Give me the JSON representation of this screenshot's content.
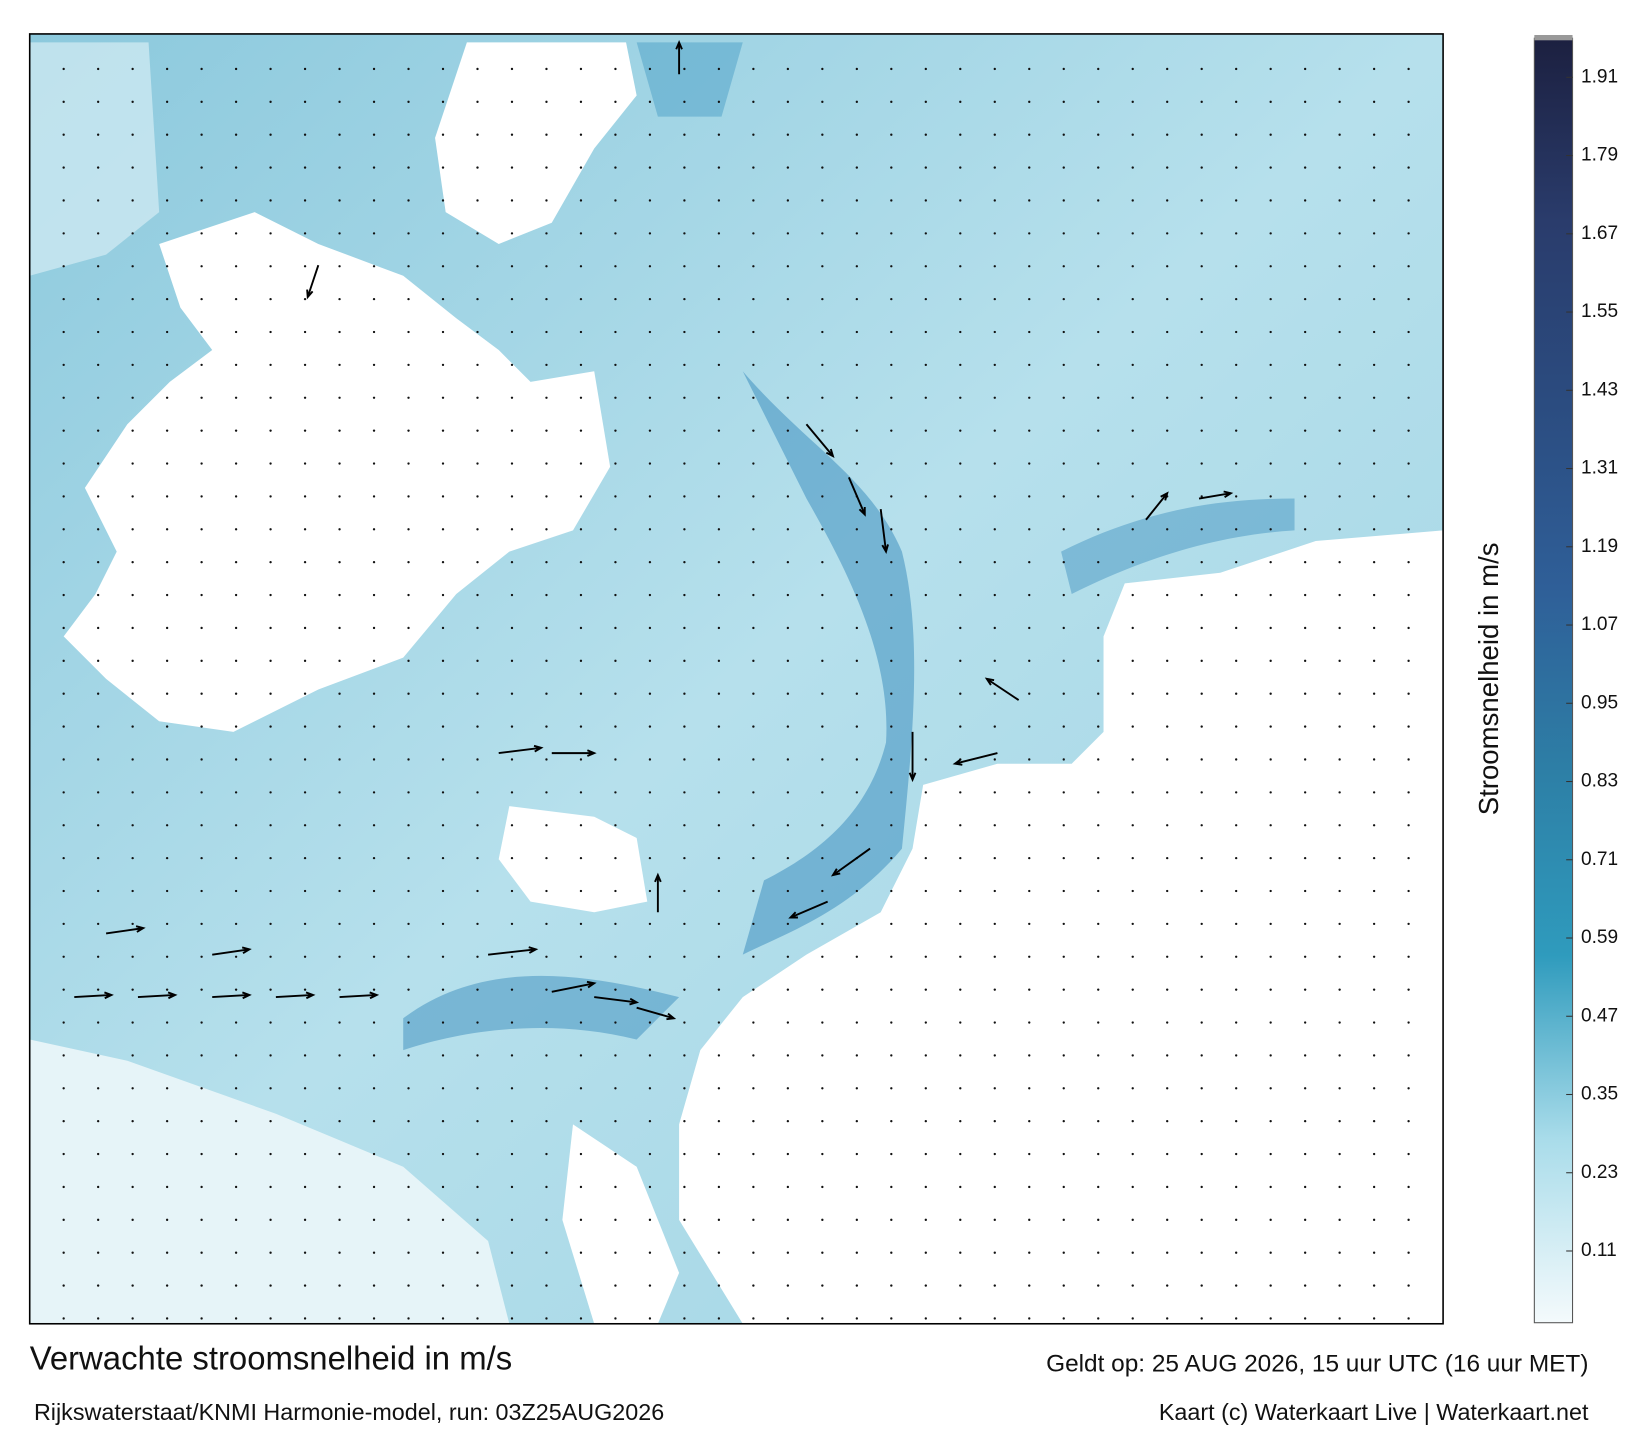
{
  "title": "Verwachte stroomsnelheid in m/s",
  "subtitle": "Rijkswaterstaat/KNMI Harmonie-model, run: 03Z25AUG2026",
  "valid_time": "Geldt op: 25 AUG 2026, 15 uur UTC (16 uur MET)",
  "credit": "Kaart (c) Waterkaart Live | Waterkaart.net",
  "colorbar": {
    "label": "Stroomsnelheid in m/s",
    "range": [
      0,
      1.97
    ],
    "ticks": [
      0.11,
      0.23,
      0.35,
      0.47,
      0.59,
      0.71,
      0.83,
      0.95,
      1.07,
      1.19,
      1.31,
      1.43,
      1.55,
      1.67,
      1.79,
      1.91
    ],
    "colors": [
      "#f4fafc",
      "#a9dcea",
      "#2f9bbd",
      "#2d7fa6",
      "#2f5f98",
      "#2b4c80",
      "#2a3c6c",
      "#1c2040"
    ]
  }
}
